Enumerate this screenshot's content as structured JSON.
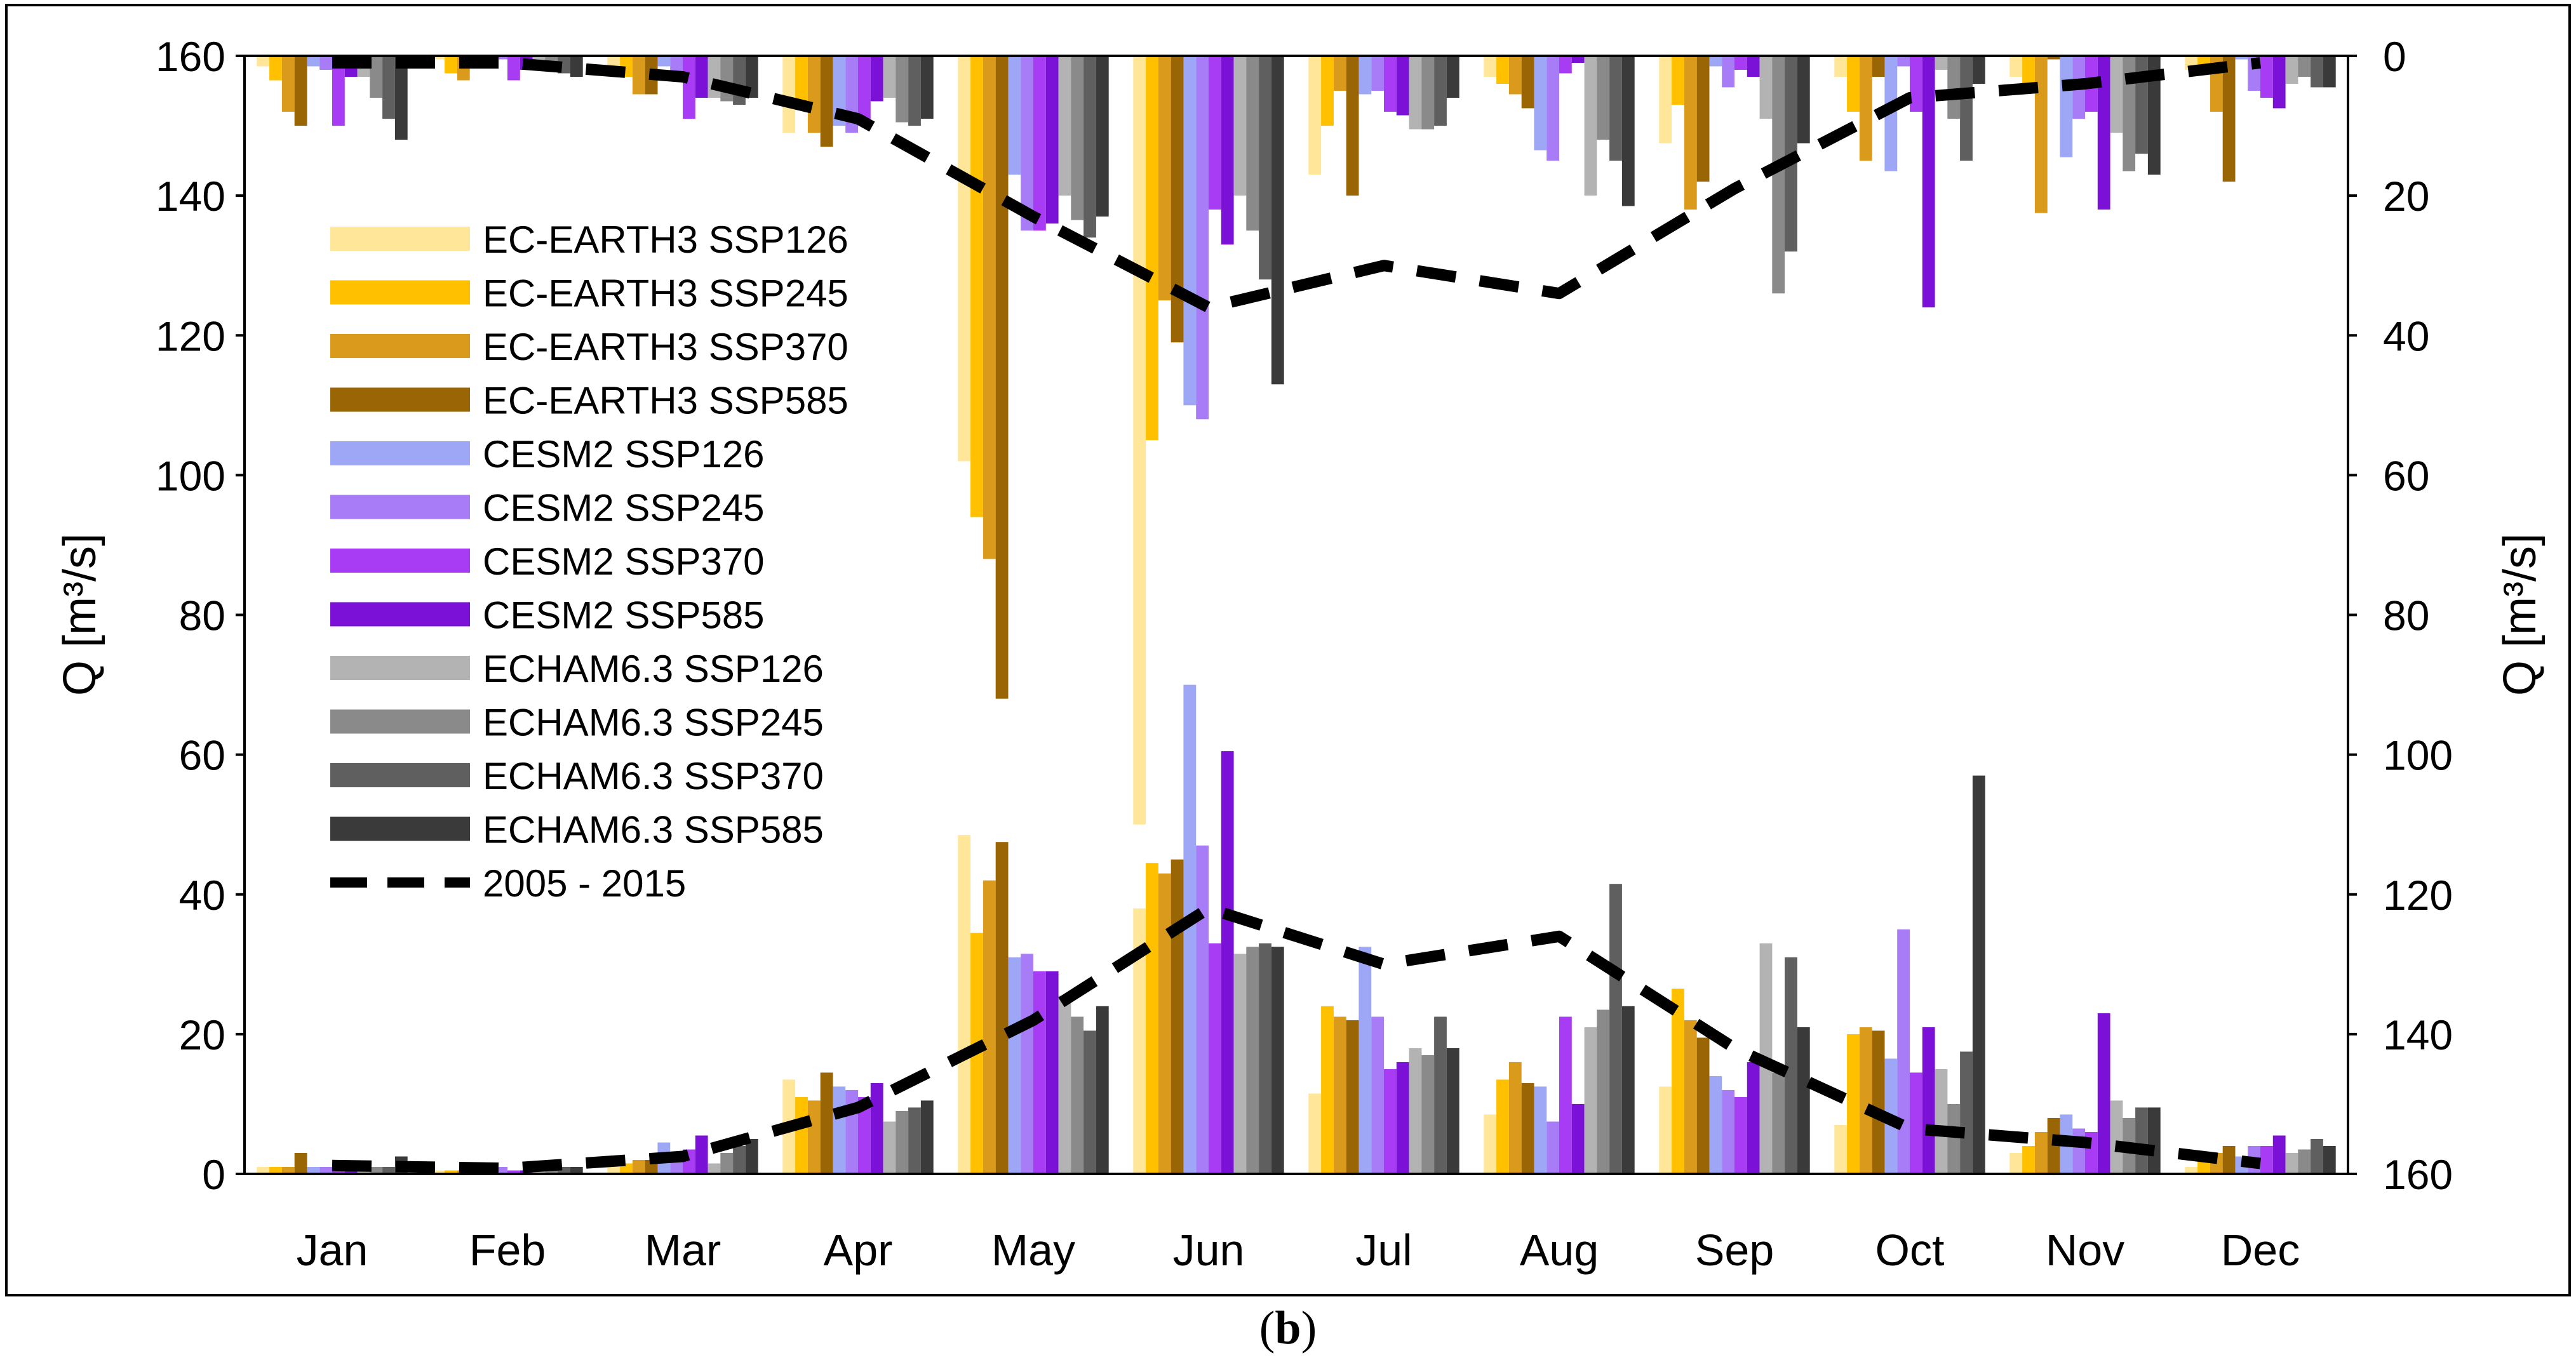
{
  "chart_data": {
    "type": "bar",
    "ylabel_left": "Q [m³/s]",
    "ylabel_right": "Q [m³/s]",
    "ylim_left": [
      0,
      160
    ],
    "ylim_right_inverted": [
      0,
      160
    ],
    "yticks_left": [
      0,
      20,
      40,
      60,
      80,
      100,
      120,
      140,
      160
    ],
    "yticks_right": [
      0,
      20,
      40,
      60,
      80,
      100,
      120,
      140,
      160
    ],
    "categories": [
      "Jan",
      "Feb",
      "Mar",
      "Apr",
      "May",
      "Jun",
      "Jul",
      "Aug",
      "Sep",
      "Oct",
      "Nov",
      "Dec"
    ],
    "legend_position": "upper-left",
    "series": [
      {
        "name": "EC-EARTH3 SSP126",
        "color": "#FFE699",
        "values": [
          1,
          0.5,
          1.5,
          13.5,
          48.5,
          38,
          11.5,
          8.5,
          12.5,
          7,
          3,
          1
        ],
        "top_values": [
          1.5,
          0.5,
          1.5,
          11,
          58,
          110,
          17,
          3,
          12.5,
          3,
          3,
          2
        ]
      },
      {
        "name": "EC-EARTH3 SSP245",
        "color": "#FFC000",
        "values": [
          1,
          0.5,
          1.5,
          11,
          34.5,
          44.5,
          24,
          13.5,
          26.5,
          20,
          4,
          2
        ],
        "top_values": [
          3.5,
          2.5,
          3,
          7,
          66,
          55,
          10,
          4,
          7,
          8,
          5,
          1.5
        ]
      },
      {
        "name": "EC-EARTH3 SSP370",
        "color": "#DA9A1B",
        "values": [
          1,
          0.5,
          2,
          10.5,
          42,
          43,
          22.5,
          16,
          22,
          21,
          6,
          3
        ],
        "top_values": [
          8,
          3.5,
          5.5,
          11,
          72,
          35,
          5,
          5.5,
          22,
          15,
          22.5,
          8
        ]
      },
      {
        "name": "EC-EARTH3 SSP585",
        "color": "#9A6605",
        "values": [
          3,
          0.5,
          2,
          14.5,
          47.5,
          45,
          22,
          13,
          19.5,
          20.5,
          8,
          4
        ],
        "top_values": [
          10,
          1.5,
          5.5,
          13,
          92,
          41,
          20,
          7.5,
          18,
          3,
          0.5,
          18
        ]
      },
      {
        "name": "CESM2 SSP126",
        "color": "#9DA7F5",
        "values": [
          1,
          0.5,
          4.5,
          12.5,
          31,
          70,
          32.5,
          12.5,
          14,
          16.5,
          8.5,
          2.5
        ],
        "top_values": [
          1.5,
          0.5,
          1.5,
          10,
          17,
          50,
          5.5,
          13.5,
          1.5,
          16.5,
          14.5,
          0.5
        ]
      },
      {
        "name": "CESM2 SSP245",
        "color": "#A87BF7",
        "values": [
          1,
          1,
          3,
          12,
          31.5,
          47,
          22.5,
          7.5,
          12,
          35,
          6.5,
          4
        ],
        "top_values": [
          2,
          0.5,
          2.5,
          11,
          25,
          52,
          5,
          15,
          4.5,
          1.5,
          9,
          5
        ]
      },
      {
        "name": "CESM2 SSP370",
        "color": "#A83CF5",
        "values": [
          1.5,
          0.5,
          3.5,
          11,
          29,
          33,
          15,
          22.5,
          11,
          14.5,
          6,
          4
        ],
        "top_values": [
          10,
          3.5,
          9,
          9,
          25,
          22,
          8,
          2.5,
          2,
          8,
          8,
          6
        ]
      },
      {
        "name": "CESM2 SSP585",
        "color": "#7B10D6",
        "values": [
          1.5,
          0.5,
          5.5,
          13,
          29,
          60.5,
          16,
          10,
          16,
          21,
          23,
          5.5
        ],
        "top_values": [
          3,
          2,
          6,
          6.5,
          24,
          27,
          8.5,
          1,
          3,
          36,
          22,
          7.5
        ]
      },
      {
        "name": "ECHAM6.3 SSP126",
        "color": "#B3B3B3",
        "values": [
          1,
          0.5,
          1.5,
          7.5,
          25.5,
          31.5,
          18,
          21,
          33,
          15,
          10.5,
          3
        ],
        "top_values": [
          3,
          1,
          6,
          6,
          20,
          20,
          10.5,
          20,
          9,
          2,
          11,
          4
        ]
      },
      {
        "name": "ECHAM6.3 SSP245",
        "color": "#8A8A8A",
        "values": [
          1,
          0.5,
          3,
          9,
          22.5,
          32.5,
          17,
          23.5,
          14.5,
          10,
          8,
          3.5
        ],
        "top_values": [
          6,
          2,
          6.5,
          9.5,
          23.5,
          25,
          10.5,
          12,
          34,
          9,
          16.5,
          3
        ]
      },
      {
        "name": "ECHAM6.3 SSP370",
        "color": "#5F5F5F",
        "values": [
          1,
          1,
          4,
          9.5,
          20.5,
          33,
          22.5,
          41.5,
          31,
          17.5,
          9.5,
          5
        ],
        "top_values": [
          9,
          2.5,
          7,
          10,
          26,
          32,
          10,
          15,
          28,
          15,
          14,
          4.5
        ]
      },
      {
        "name": "ECHAM6.3 SSP585",
        "color": "#3A3A3A",
        "values": [
          2.5,
          1,
          5,
          10.5,
          24,
          32.5,
          18,
          24,
          21,
          57,
          9.5,
          4
        ],
        "top_values": [
          12,
          3,
          6,
          9,
          23,
          47,
          6,
          21.5,
          12.5,
          4,
          17,
          4.5
        ]
      },
      {
        "name": "2005 - 2015",
        "color": "#000000",
        "style": "dashed",
        "values": [
          1.2,
          0.8,
          2.5,
          9.5,
          22,
          38,
          30,
          34,
          18,
          6.5,
          4.5,
          1.5
        ],
        "top_values": [
          1,
          1,
          3,
          9,
          23,
          36,
          30,
          34,
          19,
          6,
          4,
          1
        ]
      }
    ]
  },
  "caption": {
    "open": "(",
    "label": "b",
    "close": ")"
  }
}
